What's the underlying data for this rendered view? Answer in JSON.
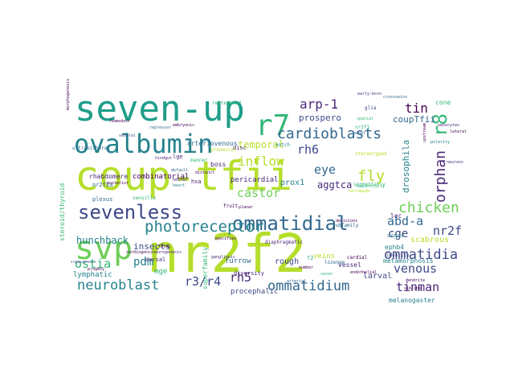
{
  "palette": [
    "#440154",
    "#482878",
    "#3e4989",
    "#31688e",
    "#26828e",
    "#1f9e89",
    "#35b779",
    "#6ece58",
    "#b5de2b",
    "#fde725"
  ],
  "words": [
    {
      "text": "coup-tfii",
      "color": "#b5de2b",
      "rotate": 0
    },
    {
      "text": "nr2f2",
      "color": "#b5de2b",
      "rotate": 0
    },
    {
      "text": "seven-up",
      "color": "#1f9e89",
      "rotate": 0
    },
    {
      "text": "ovalbumin",
      "color": "#26828e",
      "rotate": 0
    },
    {
      "text": "r7",
      "color": "#35b779",
      "rotate": 0
    },
    {
      "text": "svp",
      "color": "#6ece58",
      "rotate": 0
    },
    {
      "text": "sevenless",
      "color": "#3e4989",
      "rotate": 0
    },
    {
      "text": "ommatidial",
      "color": "#31688e",
      "rotate": 0
    },
    {
      "text": "cardioblasts",
      "color": "#31688e",
      "rotate": 0
    },
    {
      "text": "photoreceptor",
      "color": "#26828e",
      "rotate": 0
    },
    {
      "text": "neuroblast",
      "color": "#26828e",
      "rotate": 0
    },
    {
      "text": "ommatidium",
      "color": "#31688e",
      "rotate": 0
    },
    {
      "text": "ommatidia",
      "color": "#3e4989",
      "rotate": 0
    },
    {
      "text": "chicken",
      "color": "#6ece58",
      "rotate": 0
    },
    {
      "text": "r8",
      "color": "#35b779",
      "rotate": 90
    },
    {
      "text": "orphan",
      "color": "#482878",
      "rotate": 90
    },
    {
      "text": "arp-1",
      "color": "#482878",
      "rotate": 0
    },
    {
      "text": "tin",
      "color": "#440154",
      "rotate": 0
    },
    {
      "text": "rh6",
      "color": "#3e4989",
      "rotate": 0
    },
    {
      "text": "inflow",
      "color": "#b5de2b",
      "rotate": 0
    },
    {
      "text": "fly",
      "color": "#b5de2b",
      "rotate": 0
    },
    {
      "text": "eye",
      "color": "#31688e",
      "rotate": 0
    },
    {
      "text": "castor",
      "color": "#6ece58",
      "rotate": 0
    },
    {
      "text": "abd-a",
      "color": "#31688e",
      "rotate": 0
    },
    {
      "text": "nr2f",
      "color": "#3e4989",
      "rotate": 0
    },
    {
      "text": "cge",
      "color": "#3e4989",
      "rotate": 0
    },
    {
      "text": "venous",
      "color": "#3e4989",
      "rotate": 0
    },
    {
      "text": "tinman",
      "color": "#482878",
      "rotate": 0
    },
    {
      "text": "rh5",
      "color": "#482878",
      "rotate": 0
    },
    {
      "text": "r3/r4",
      "color": "#3e4989",
      "rotate": 0
    },
    {
      "text": "pdm",
      "color": "#26828e",
      "rotate": 0
    },
    {
      "text": "ostia",
      "color": "#35b779",
      "rotate": 0
    },
    {
      "text": "hunchback",
      "color": "#26828e",
      "rotate": 0
    },
    {
      "text": "insects",
      "color": "#3e4989",
      "rotate": 0
    },
    {
      "text": "prospero",
      "color": "#3e4989",
      "rotate": 0
    },
    {
      "text": "coupTfii",
      "color": "#31688e",
      "rotate": 0
    },
    {
      "text": "temporal",
      "color": "#b5de2b",
      "rotate": 0
    },
    {
      "text": "drosophila",
      "color": "#26828e",
      "rotate": 90
    },
    {
      "text": "aggtca",
      "color": "#482878",
      "rotate": 0
    },
    {
      "text": "prox1",
      "color": "#26828e",
      "rotate": 0
    },
    {
      "text": "scabrous",
      "color": "#b5de2b",
      "rotate": 0
    },
    {
      "text": "larval",
      "color": "#3e4989",
      "rotate": 0
    },
    {
      "text": "melanogaster",
      "color": "#26828e",
      "rotate": 0
    },
    {
      "text": "rough",
      "color": "#3e4989",
      "rotate": 0
    },
    {
      "text": "veins",
      "color": "#b5de2b",
      "rotate": 0
    },
    {
      "text": "procephalic",
      "color": "#3e4989",
      "rotate": 0
    },
    {
      "text": "furrow",
      "color": "#31688e",
      "rotate": 0
    },
    {
      "text": "pericardial",
      "color": "#482878",
      "rotate": 0
    },
    {
      "text": "steroid/thyroid",
      "color": "#35b779",
      "rotate": 90
    },
    {
      "text": "lymphatic",
      "color": "#26828e",
      "rotate": 0
    },
    {
      "text": "mge",
      "color": "#35b779",
      "rotate": 0
    },
    {
      "text": "metamorphosis",
      "color": "#26828e",
      "rotate": 0
    },
    {
      "text": "ephb4",
      "color": "#26828e",
      "rotate": 0
    },
    {
      "text": "combinatorial",
      "color": "#440154",
      "rotate": 0
    },
    {
      "text": "rhabdomere",
      "color": "#482878",
      "rotate": 0
    },
    {
      "text": "boss",
      "color": "#482878",
      "rotate": 0
    },
    {
      "text": "nr2f1a",
      "color": "#31688e",
      "rotate": 0
    },
    {
      "text": "plexus",
      "color": "#31688e",
      "rotate": 0
    },
    {
      "text": "ultrabithorax",
      "color": "#31688e",
      "rotate": 0
    },
    {
      "text": "arteriovenous",
      "color": "#31688e",
      "rotate": 0
    },
    {
      "text": "diaphragmatic",
      "color": "#482878",
      "rotate": 0
    },
    {
      "text": "superfamily",
      "color": "#35b779",
      "rotate": 90
    },
    {
      "text": "lozenge",
      "color": "#31688e",
      "rotate": 0
    },
    {
      "text": "vessel",
      "color": "#482878",
      "rotate": 0
    },
    {
      "text": "cone",
      "color": "#35b779",
      "rotate": 0
    },
    {
      "text": "cardial",
      "color": "#440154",
      "rotate": 0
    },
    {
      "text": "diversity",
      "color": "#482878",
      "rotate": 0
    },
    {
      "text": "reiterated",
      "color": "#35b779",
      "rotate": 0
    },
    {
      "text": "disc",
      "color": "#482878",
      "rotate": 0
    },
    {
      "text": "identity",
      "color": "#3e4989",
      "rotate": 0
    },
    {
      "text": "argos",
      "color": "#26828e",
      "rotate": 0
    },
    {
      "text": "lec",
      "color": "#482878",
      "rotate": 0
    },
    {
      "text": "segmentally",
      "color": "#35b779",
      "rotate": 0
    },
    {
      "text": "stereotyped",
      "color": "#b5de2b",
      "rotate": 0
    },
    {
      "text": "fates",
      "color": "#440154",
      "rotate": 0
    },
    {
      "text": "fruit",
      "color": "#440154",
      "rotate": 0
    },
    {
      "text": "f2",
      "color": "#35b779",
      "rotate": 0
    },
    {
      "text": "specifies",
      "color": "#440154",
      "rotate": 0
    },
    {
      "text": "dorsal",
      "color": "#482878",
      "rotate": 0
    },
    {
      "text": "ganglionic",
      "color": "#482878",
      "rotate": 0
    },
    {
      "text": "notch",
      "color": "#26828e",
      "rotate": 0
    },
    {
      "text": "proneural",
      "color": "#b5de2b",
      "rotate": 0
    },
    {
      "text": "manner",
      "color": "#35b779",
      "rotate": 0
    },
    {
      "text": "default",
      "color": "#31688e",
      "rotate": 0
    },
    {
      "text": "lge",
      "color": "#482878",
      "rotate": 0
    },
    {
      "text": "neural",
      "color": "#482878",
      "rotate": 0
    },
    {
      "text": "distinct",
      "color": "#440154",
      "rotate": 0
    },
    {
      "text": "subfamily",
      "color": "#31688e",
      "rotate": 0
    },
    {
      "text": "sequentially",
      "color": "#35b779",
      "rotate": 0
    },
    {
      "text": "hsa",
      "color": "#482878",
      "rotate": 0
    },
    {
      "text": "heart",
      "color": "#26828e",
      "rotate": 0
    },
    {
      "text": "decisions",
      "color": "#440154",
      "rotate": 0
    },
    {
      "text": "pupal",
      "color": "#31688e",
      "rotate": 0
    },
    {
      "text": "arterial",
      "color": "#31688e",
      "rotate": 0
    },
    {
      "text": "spatial",
      "color": "#35b779",
      "rotate": 0
    },
    {
      "text": "planar",
      "color": "#440154",
      "rotate": 0
    },
    {
      "text": "endothelial",
      "color": "#440154",
      "rotate": 0
    },
    {
      "text": "nr2f1",
      "color": "#35b779",
      "rotate": 0
    },
    {
      "text": "glia",
      "color": "#3e4989",
      "rotate": 0
    },
    {
      "text": "upstream",
      "color": "#440154",
      "rotate": 90
    },
    {
      "text": "oenocytes",
      "color": "#482878",
      "rotate": 0
    },
    {
      "text": "sensilla",
      "color": "#35b779",
      "rotate": 0
    },
    {
      "text": "tetrapods",
      "color": "#b5de2b",
      "rotate": 0
    },
    {
      "text": "organogenesis",
      "color": "#3e4989",
      "rotate": 0
    },
    {
      "text": "progeny",
      "color": "#440154",
      "rotate": 0
    },
    {
      "text": "posterior",
      "color": "#440154",
      "rotate": 0
    },
    {
      "text": "cardiogenic",
      "color": "#440154",
      "rotate": 0
    },
    {
      "text": "neurogenesis",
      "color": "#482878",
      "rotate": 0
    },
    {
      "text": "dendrite",
      "color": "#440154",
      "rotate": 0
    },
    {
      "text": "sibling",
      "color": "#440154",
      "rotate": 0
    },
    {
      "text": "morphogenesis",
      "color": "#440154",
      "rotate": 90
    },
    {
      "text": "homeobox",
      "color": "#440154",
      "rotate": 0
    },
    {
      "text": "ventral",
      "color": "#3e4989",
      "rotate": 0
    },
    {
      "text": "repressor",
      "color": "#31688e",
      "rotate": 0
    },
    {
      "text": "early-born",
      "color": "#482878",
      "rotate": 0
    },
    {
      "text": "crossveins",
      "color": "#31688e",
      "rotate": 0
    },
    {
      "text": "polarity",
      "color": "#26828e",
      "rotate": 0
    },
    {
      "text": "lateral",
      "color": "#440154",
      "rotate": 0
    },
    {
      "text": "neurons",
      "color": "#482878",
      "rotate": 0
    },
    {
      "text": "embryonic",
      "color": "#440154",
      "rotate": 0
    },
    {
      "text": "hindgut",
      "color": "#482878",
      "rotate": 0
    },
    {
      "text": "number",
      "color": "#440154",
      "rotate": 0
    },
    {
      "text": "seven",
      "color": "#35b779",
      "rotate": 0
    }
  ]
}
